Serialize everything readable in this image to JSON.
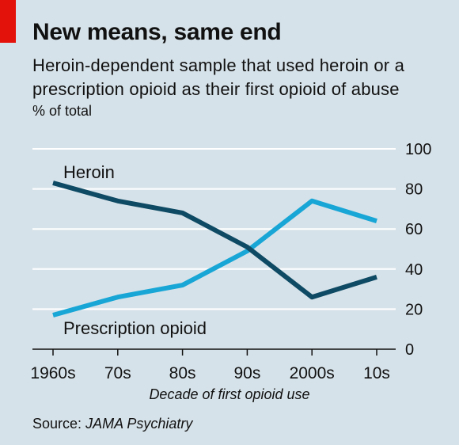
{
  "header": {
    "title": "New means, same end",
    "subtitle": "Heroin-dependent sample that used heroin or a prescription opioid as their first opioid of abuse",
    "unit": "% of total"
  },
  "footer": {
    "source_prefix": "Source:",
    "source_name": "JAMA Psychiatry"
  },
  "colors": {
    "background": "#d6e2e9",
    "brand_tag": "#e3120b",
    "heroin": "#0e4a64",
    "prescription": "#18a6d6",
    "grid": "#ffffff",
    "axis": "#111111"
  },
  "chart_data": {
    "type": "line",
    "title": "New means, same end",
    "subtitle": "Heroin-dependent sample that used heroin or a prescription opioid as their first opioid of abuse",
    "ylabel": "% of total",
    "xlabel": "Decade of first opioid use",
    "categories": [
      "1960s",
      "70s",
      "80s",
      "90s",
      "2000s",
      "10s"
    ],
    "ylim": [
      0,
      100
    ],
    "yticks": [
      0,
      20,
      40,
      60,
      80,
      100
    ],
    "y_axis_side": "right",
    "grid": true,
    "legend": "inline labels",
    "series": [
      {
        "name": "Heroin",
        "color": "#0e4a64",
        "values": [
          83,
          74,
          68,
          51,
          26,
          36
        ]
      },
      {
        "name": "Prescription opioid",
        "color": "#18a6d6",
        "values": [
          17,
          26,
          32,
          49,
          74,
          64
        ]
      }
    ]
  }
}
